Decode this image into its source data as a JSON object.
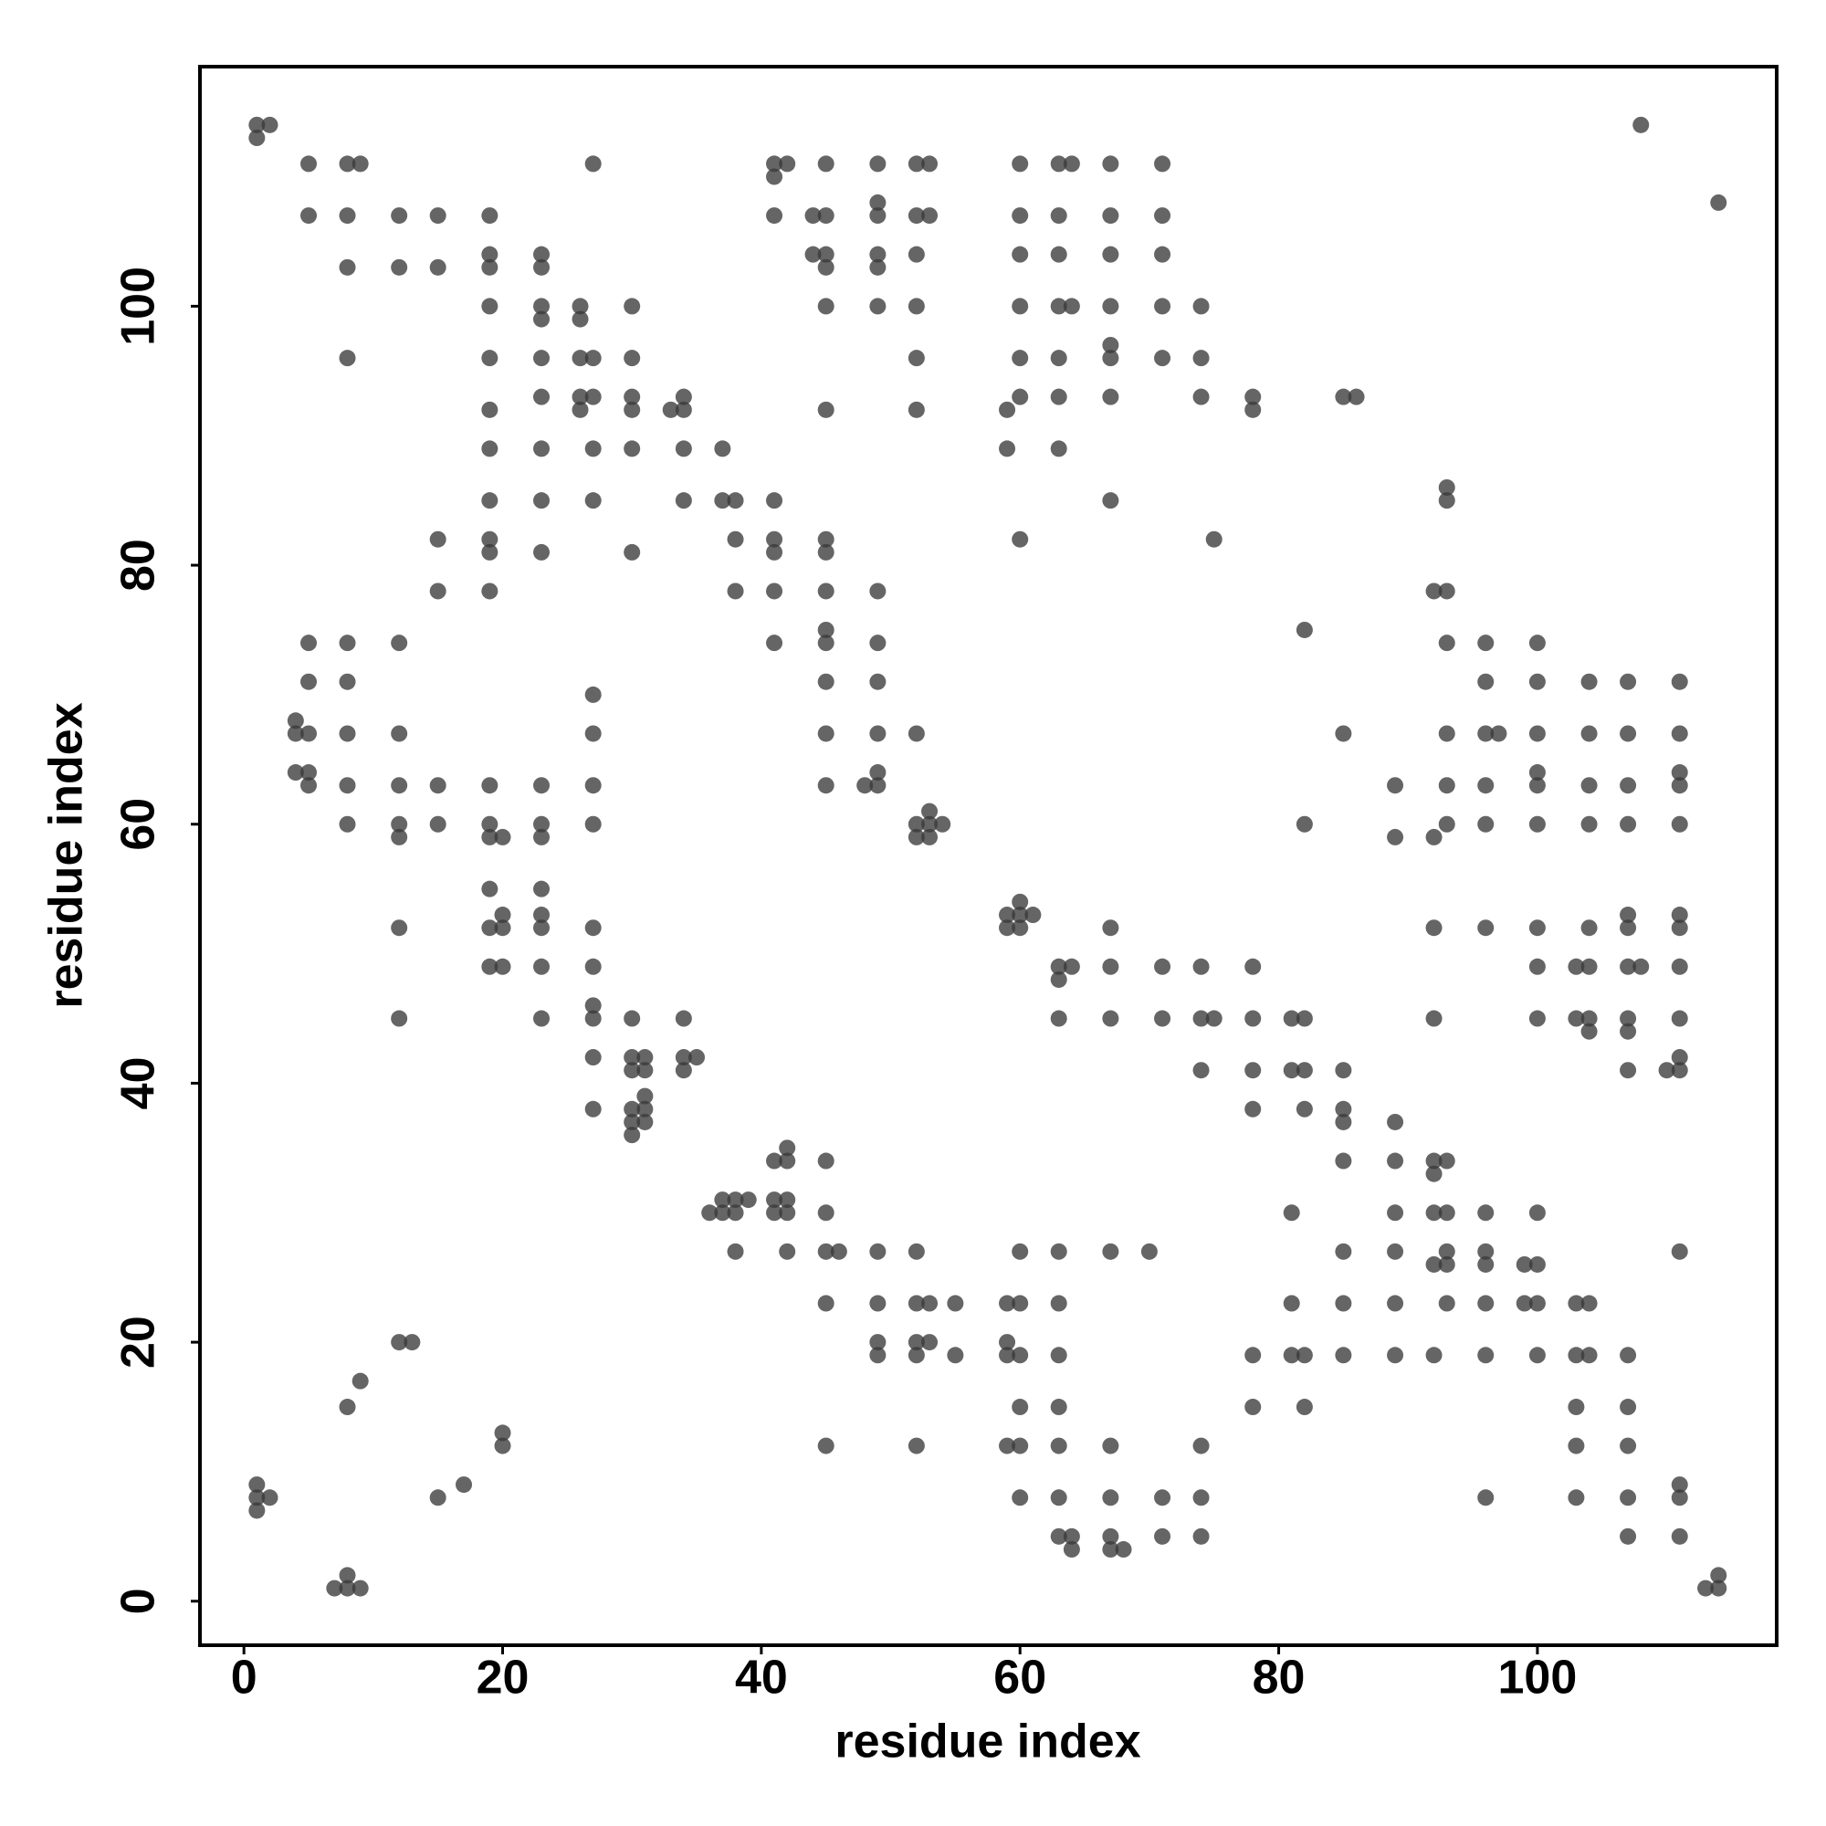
{
  "chart_data": {
    "type": "scatter",
    "x_label": "residue index",
    "y_label": "residue index",
    "color": "#3a3a3a",
    "xlim": [
      -3.4,
      118.5
    ],
    "ylim": [
      -3.4,
      118.5
    ],
    "xticks": [
      0,
      20,
      40,
      60,
      80,
      100
    ],
    "yticks": [
      0,
      20,
      40,
      60,
      80,
      100
    ],
    "x": [
      1,
      2,
      108,
      1,
      5,
      8,
      9,
      27,
      41,
      42,
      45,
      49,
      52,
      53,
      60,
      63,
      64,
      67,
      71,
      41,
      49,
      114,
      5,
      8,
      12,
      15,
      19,
      41,
      44,
      45,
      49,
      52,
      53,
      60,
      63,
      67,
      71,
      19,
      23,
      44,
      45,
      49,
      52,
      60,
      63,
      67,
      71,
      8,
      12,
      15,
      19,
      23,
      45,
      49,
      19,
      23,
      26,
      30,
      45,
      49,
      52,
      60,
      63,
      64,
      67,
      71,
      74,
      23,
      26,
      67,
      8,
      19,
      23,
      26,
      27,
      30,
      52,
      60,
      63,
      67,
      71,
      74,
      23,
      26,
      27,
      30,
      34,
      60,
      63,
      67,
      74,
      78,
      85,
      86,
      19,
      26,
      30,
      33,
      34,
      45,
      52,
      59,
      78,
      19,
      23,
      27,
      30,
      34,
      37,
      59,
      63,
      93,
      19,
      23,
      27,
      34,
      37,
      38,
      41,
      67,
      93,
      15,
      19,
      38,
      41,
      45,
      60,
      75,
      19,
      23,
      30,
      41,
      45,
      15,
      19,
      38,
      41,
      45,
      49,
      92,
      93,
      45,
      82,
      5,
      8,
      12,
      41,
      45,
      49,
      93,
      96,
      100,
      5,
      8,
      45,
      49,
      96,
      100,
      104,
      107,
      111,
      27,
      4,
      4,
      5,
      8,
      12,
      27,
      45,
      49,
      52,
      85,
      93,
      96,
      97,
      100,
      104,
      107,
      111,
      4,
      5,
      49,
      100,
      111,
      5,
      8,
      12,
      15,
      19,
      23,
      27,
      45,
      48,
      49,
      89,
      93,
      96,
      100,
      104,
      107,
      111,
      53,
      8,
      12,
      15,
      19,
      23,
      27,
      52,
      53,
      54,
      82,
      93,
      96,
      100,
      104,
      107,
      111,
      12,
      19,
      20,
      23,
      52,
      53,
      89,
      92,
      19,
      23,
      60,
      20,
      23,
      59,
      60,
      61,
      107,
      111,
      12,
      19,
      20,
      23,
      27,
      59,
      60,
      67,
      92,
      96,
      100,
      104,
      107,
      111,
      19,
      20,
      23,
      27,
      63,
      64,
      67,
      71,
      74,
      78,
      100,
      103,
      104,
      107,
      108,
      111,
      63,
      27,
      12,
      23,
      27,
      30,
      34,
      63,
      67,
      71,
      74,
      75,
      78,
      81,
      82,
      92,
      100,
      103,
      104,
      107,
      111,
      104,
      107,
      27,
      30,
      31,
      34,
      35,
      111,
      30,
      31,
      34,
      74,
      78,
      81,
      82,
      85,
      107,
      110,
      111,
      31,
      27,
      30,
      31,
      78,
      82,
      85,
      30,
      31,
      85,
      89,
      30,
      42,
      41,
      42,
      45,
      85,
      89,
      92,
      93,
      92,
      37,
      38,
      39,
      41,
      42,
      36,
      37,
      38,
      41,
      42,
      45,
      81,
      89,
      92,
      93,
      96,
      100,
      38,
      42,
      45,
      46,
      49,
      52,
      60,
      63,
      67,
      70,
      85,
      89,
      93,
      96,
      111,
      92,
      93,
      96,
      99,
      100,
      45,
      49,
      52,
      53,
      55,
      59,
      60,
      63,
      81,
      85,
      89,
      93,
      96,
      99,
      100,
      103,
      104,
      12,
      13,
      49,
      52,
      53,
      59,
      49,
      52,
      55,
      59,
      60,
      63,
      78,
      81,
      82,
      85,
      89,
      92,
      96,
      100,
      103,
      104,
      107,
      9,
      8,
      60,
      63,
      78,
      82,
      103,
      107,
      20,
      20,
      45,
      52,
      59,
      60,
      63,
      67,
      74,
      103,
      107,
      1,
      17,
      111,
      1,
      2,
      15,
      60,
      63,
      67,
      71,
      74,
      96,
      103,
      107,
      111,
      1,
      63,
      64,
      67,
      71,
      74,
      107,
      111,
      64,
      67,
      68,
      8,
      114,
      7,
      8,
      9,
      113,
      114
    ],
    "values": [
      114,
      114,
      114,
      113,
      111,
      111,
      111,
      111,
      111,
      111,
      111,
      111,
      111,
      111,
      111,
      111,
      111,
      111,
      111,
      110,
      108,
      108,
      107,
      107,
      107,
      107,
      107,
      107,
      107,
      107,
      107,
      107,
      107,
      107,
      107,
      107,
      107,
      104,
      104,
      104,
      104,
      104,
      104,
      104,
      104,
      104,
      104,
      103,
      103,
      103,
      103,
      103,
      103,
      103,
      100,
      100,
      100,
      100,
      100,
      100,
      100,
      100,
      100,
      100,
      100,
      100,
      100,
      99,
      99,
      97,
      96,
      96,
      96,
      96,
      96,
      96,
      96,
      96,
      96,
      96,
      96,
      96,
      93,
      93,
      93,
      93,
      93,
      93,
      93,
      93,
      93,
      93,
      93,
      93,
      92,
      92,
      92,
      92,
      92,
      92,
      92,
      92,
      92,
      89,
      89,
      89,
      89,
      89,
      89,
      89,
      89,
      86,
      85,
      85,
      85,
      85,
      85,
      85,
      85,
      85,
      85,
      82,
      82,
      82,
      82,
      82,
      82,
      82,
      81,
      81,
      81,
      81,
      81,
      78,
      78,
      78,
      78,
      78,
      78,
      78,
      78,
      75,
      75,
      74,
      74,
      74,
      74,
      74,
      74,
      74,
      74,
      74,
      71,
      71,
      71,
      71,
      71,
      71,
      71,
      71,
      71,
      70,
      68,
      67,
      67,
      67,
      67,
      67,
      67,
      67,
      67,
      67,
      67,
      67,
      67,
      67,
      67,
      67,
      67,
      64,
      64,
      64,
      64,
      64,
      63,
      63,
      63,
      63,
      63,
      63,
      63,
      63,
      63,
      63,
      63,
      63,
      63,
      63,
      63,
      63,
      63,
      61,
      60,
      60,
      60,
      60,
      60,
      60,
      60,
      60,
      60,
      60,
      60,
      60,
      60,
      60,
      60,
      60,
      59,
      59,
      59,
      59,
      59,
      59,
      59,
      59,
      55,
      55,
      54,
      53,
      53,
      53,
      53,
      53,
      53,
      53,
      52,
      52,
      52,
      52,
      52,
      52,
      52,
      52,
      52,
      52,
      52,
      52,
      52,
      52,
      49,
      49,
      49,
      49,
      49,
      49,
      49,
      49,
      49,
      49,
      49,
      49,
      49,
      49,
      49,
      49,
      48,
      46,
      45,
      45,
      45,
      45,
      45,
      45,
      45,
      45,
      45,
      45,
      45,
      45,
      45,
      45,
      45,
      45,
      45,
      45,
      45,
      44,
      44,
      42,
      42,
      42,
      42,
      42,
      42,
      41,
      41,
      41,
      41,
      41,
      41,
      41,
      41,
      41,
      41,
      41,
      39,
      38,
      38,
      38,
      38,
      38,
      38,
      37,
      37,
      37,
      37,
      36,
      35,
      34,
      34,
      34,
      34,
      34,
      34,
      34,
      33,
      31,
      31,
      31,
      31,
      31,
      30,
      30,
      30,
      30,
      30,
      30,
      30,
      30,
      30,
      30,
      30,
      30,
      27,
      27,
      27,
      27,
      27,
      27,
      27,
      27,
      27,
      27,
      27,
      27,
      27,
      27,
      27,
      26,
      26,
      26,
      26,
      26,
      23,
      23,
      23,
      23,
      23,
      23,
      23,
      23,
      23,
      23,
      23,
      23,
      23,
      23,
      23,
      23,
      23,
      20,
      20,
      20,
      20,
      20,
      20,
      19,
      19,
      19,
      19,
      19,
      19,
      19,
      19,
      19,
      19,
      19,
      19,
      19,
      19,
      19,
      19,
      19,
      17,
      15,
      15,
      15,
      15,
      15,
      15,
      15,
      13,
      12,
      12,
      12,
      12,
      12,
      12,
      12,
      12,
      12,
      12,
      9,
      9,
      9,
      8,
      8,
      8,
      8,
      8,
      8,
      8,
      8,
      8,
      8,
      8,
      8,
      7,
      5,
      5,
      5,
      5,
      5,
      5,
      5,
      4,
      4,
      4,
      2,
      2,
      1,
      1,
      1,
      1,
      1
    ]
  }
}
